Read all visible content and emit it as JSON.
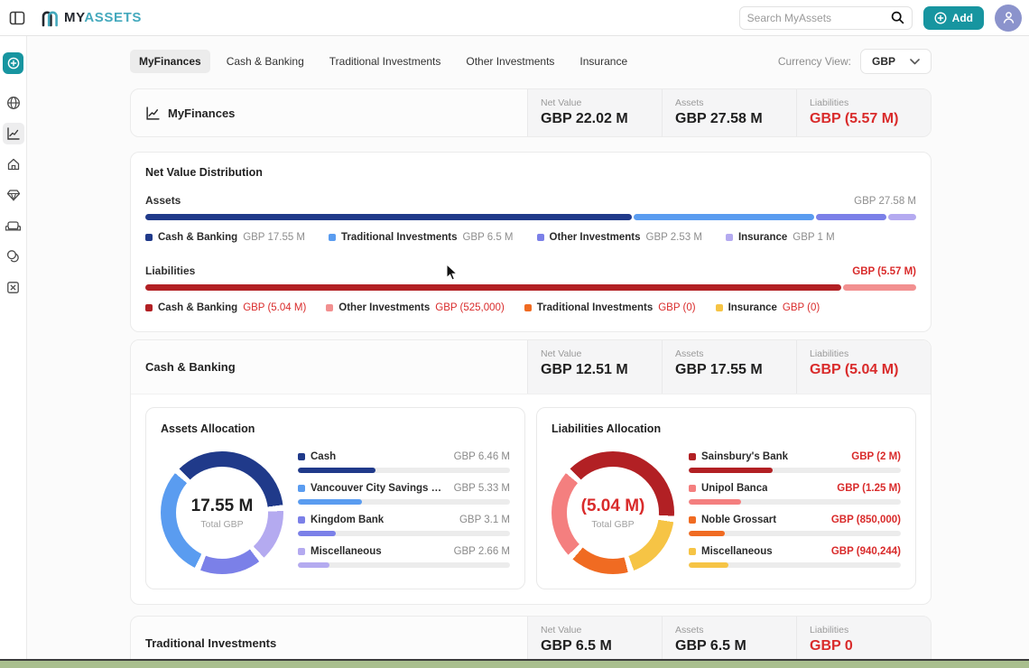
{
  "topbar": {
    "brand_my": "MY",
    "brand_assets": "ASSETS",
    "search_placeholder": "Search MyAssets",
    "add_label": "Add"
  },
  "tabs": {
    "items": [
      {
        "label": "MyFinances"
      },
      {
        "label": "Cash & Banking"
      },
      {
        "label": "Traditional Investments"
      },
      {
        "label": "Other Investments"
      },
      {
        "label": "Insurance"
      }
    ],
    "currency_label": "Currency View:",
    "currency_value": "GBP"
  },
  "labels": {
    "net_value": "Net Value",
    "assets": "Assets",
    "liabilities": "Liabilities"
  },
  "colors": {
    "accent_teal": "#1795a0",
    "negative_red": "#d92b2b",
    "navy": "#203a8a",
    "blue": "#5a9cf0",
    "purple": "#7b80e8",
    "lavender": "#b4aaf0",
    "dark_red": "#b22024",
    "salmon": "#f29090",
    "orange": "#f06b22",
    "yellow": "#f6c445"
  },
  "myfinances": {
    "title": "MyFinances",
    "net_value": "GBP 22.02 M",
    "assets": "GBP 27.58 M",
    "liabilities": "GBP (5.57 M)"
  },
  "distribution": {
    "title": "Net Value Distribution",
    "assets_label": "Assets",
    "assets_total": "GBP 27.58 M",
    "assets_bar": [
      {
        "color": "#203a8a",
        "pct": 63.6
      },
      {
        "color": "#5a9cf0",
        "pct": 23.5
      },
      {
        "color": "#7b80e8",
        "pct": 9.2
      },
      {
        "color": "#b4aaf0",
        "pct": 3.7
      }
    ],
    "assets_legend": [
      {
        "name": "Cash & Banking",
        "value": "GBP 17.55 M",
        "color": "#203a8a"
      },
      {
        "name": "Traditional Investments",
        "value": "GBP 6.5 M",
        "color": "#5a9cf0"
      },
      {
        "name": "Other Investments",
        "value": "GBP 2.53 M",
        "color": "#7b80e8"
      },
      {
        "name": "Insurance",
        "value": "GBP 1 M",
        "color": "#b4aaf0"
      }
    ],
    "liabilities_label": "Liabilities",
    "liabilities_total": "GBP (5.57 M)",
    "liabilities_bar": [
      {
        "color": "#b22024",
        "pct": 90.5
      },
      {
        "color": "#f29090",
        "pct": 9.5
      }
    ],
    "liabilities_legend": [
      {
        "name": "Cash & Banking",
        "value": "GBP (5.04 M)",
        "color": "#b22024"
      },
      {
        "name": "Other Investments",
        "value": "GBP (525,000)",
        "color": "#f29090"
      },
      {
        "name": "Traditional Investments",
        "value": "GBP (0)",
        "color": "#f06b22"
      },
      {
        "name": "Insurance",
        "value": "GBP (0)",
        "color": "#f6c445"
      }
    ]
  },
  "cash_banking": {
    "title": "Cash & Banking",
    "net_value": "GBP 12.51 M",
    "assets": "GBP 17.55 M",
    "liabilities": "GBP (5.04 M)",
    "assets_allocation": {
      "title": "Assets Allocation",
      "center_value": "17.55 M",
      "center_label": "Total GBP",
      "donut_start_deg": -47,
      "donut_order": [
        0,
        3,
        2,
        1
      ],
      "items": [
        {
          "name": "Cash",
          "value": "GBP 6.46 M",
          "color": "#203a8a",
          "pct": 36.8
        },
        {
          "name": "Vancouver City Savings Credi...",
          "value": "GBP 5.33 M",
          "color": "#5a9cf0",
          "pct": 30.4
        },
        {
          "name": "Kingdom Bank",
          "value": "GBP 3.1 M",
          "color": "#7b80e8",
          "pct": 17.7
        },
        {
          "name": "Miscellaneous",
          "value": "GBP 2.66 M",
          "color": "#b4aaf0",
          "pct": 15.1
        }
      ]
    },
    "liabilities_allocation": {
      "title": "Liabilities Allocation",
      "center_value": "(5.04 M)",
      "center_label": "Total GBP",
      "donut_start_deg": -47,
      "donut_order": [
        0,
        3,
        2,
        1
      ],
      "items": [
        {
          "name": "Sainsbury's Bank",
          "value": "GBP (2 M)",
          "color": "#b22024",
          "pct": 39.7
        },
        {
          "name": "Unipol Banca",
          "value": "GBP (1.25 M)",
          "color": "#f47f7f",
          "pct": 24.8
        },
        {
          "name": "Noble Grossart",
          "value": "GBP (850,000)",
          "color": "#f06b22",
          "pct": 16.9
        },
        {
          "name": "Miscellaneous",
          "value": "GBP (940,244)",
          "color": "#f6c445",
          "pct": 18.6
        }
      ]
    }
  },
  "traditional": {
    "title": "Traditional Investments",
    "net_value": "GBP 6.5 M",
    "assets": "GBP 6.5 M",
    "liabilities": "GBP 0"
  },
  "chart_data": [
    {
      "type": "bar",
      "title": "Net Value Distribution - Assets",
      "categories": [
        "Cash & Banking",
        "Traditional Investments",
        "Other Investments",
        "Insurance"
      ],
      "values": [
        17550000,
        6500000,
        2530000,
        1000000
      ],
      "total_label": "GBP 27.58 M"
    },
    {
      "type": "bar",
      "title": "Net Value Distribution - Liabilities",
      "categories": [
        "Cash & Banking",
        "Other Investments",
        "Traditional Investments",
        "Insurance"
      ],
      "values": [
        -5040000,
        -525000,
        0,
        0
      ],
      "total_label": "GBP (5.57 M)"
    },
    {
      "type": "pie",
      "title": "Assets Allocation",
      "categories": [
        "Cash",
        "Vancouver City Savings Credi...",
        "Kingdom Bank",
        "Miscellaneous"
      ],
      "values": [
        6460000,
        5330000,
        3100000,
        2660000
      ],
      "center_label": "17.55 M Total GBP"
    },
    {
      "type": "pie",
      "title": "Liabilities Allocation",
      "categories": [
        "Sainsbury's Bank",
        "Unipol Banca",
        "Noble Grossart",
        "Miscellaneous"
      ],
      "values": [
        -2000000,
        -1250000,
        -850000,
        -940244
      ],
      "center_label": "(5.04 M) Total GBP"
    }
  ]
}
